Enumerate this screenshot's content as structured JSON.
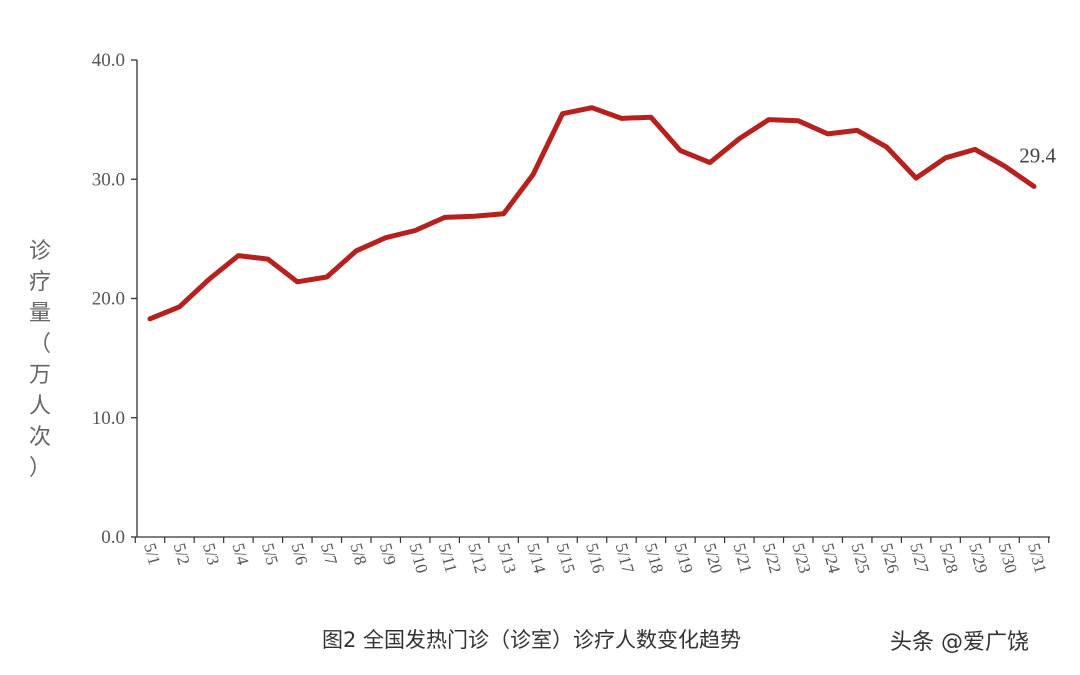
{
  "chart_data": {
    "type": "line",
    "title": "",
    "caption": "图2 全国发热门诊（诊室）诊疗人数变化趋势",
    "xlabel": "",
    "ylabel": "诊疗量（万人次）",
    "ylim": [
      0,
      40
    ],
    "yticks": [
      "0.0",
      "10.0",
      "20.0",
      "30.0",
      "40.0"
    ],
    "grid": false,
    "legend": "none",
    "color": "#b8201e",
    "x": [
      "5/1",
      "5/2",
      "5/3",
      "5/4",
      "5/5",
      "5/6",
      "5/7",
      "5/8",
      "5/9",
      "5/10",
      "5/11",
      "5/12",
      "5/13",
      "5/14",
      "5/15",
      "5/16",
      "5/17",
      "5/18",
      "5/19",
      "5/20",
      "5/21",
      "5/22",
      "5/23",
      "5/24",
      "5/25",
      "5/26",
      "5/27",
      "5/28",
      "5/29",
      "5/30",
      "5/31"
    ],
    "series": [
      {
        "values": [
          18.3,
          19.3,
          21.6,
          23.6,
          23.3,
          21.4,
          21.8,
          24.0,
          25.1,
          25.7,
          26.8,
          26.9,
          27.1,
          30.4,
          35.5,
          36.0,
          35.1,
          35.2,
          32.4,
          31.4,
          33.4,
          35.0,
          34.9,
          33.8,
          34.1,
          32.7,
          30.1,
          31.8,
          32.5,
          31.1,
          29.4
        ]
      }
    ],
    "annotations": [
      {
        "index": 30,
        "text": "29.4"
      }
    ]
  },
  "watermark": "头条 @爱广饶"
}
